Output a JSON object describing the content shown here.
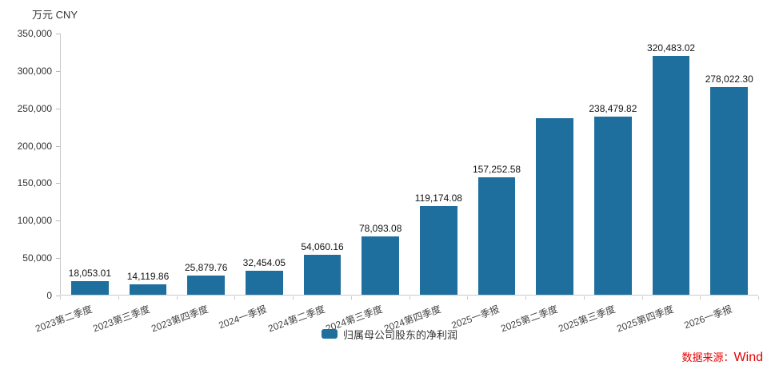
{
  "chart_data": {
    "type": "bar",
    "unit_label": "万元  CNY",
    "categories": [
      "2023第二季度",
      "2023第三季度",
      "2023第四季度",
      "2024一季报",
      "2024第二季度",
      "2024第三季度",
      "2024第四季度",
      "2025一季报",
      "2025第二季度",
      "2025第三季度",
      "2025第四季度",
      "2026一季报"
    ],
    "values": [
      18053.01,
      14119.86,
      25879.76,
      32454.05,
      54060.16,
      78093.08,
      119174.08,
      157252.58,
      237000,
      238479.82,
      320483.02,
      278022.3
    ],
    "data_labels": [
      "18,053.01",
      "14,119.86",
      "25,879.76",
      "32,454.05",
      "54,060.16",
      "78,093.08",
      "119,174.08",
      "157,252.58",
      "",
      "238,479.82",
      "320,483.02",
      "278,022.30"
    ],
    "ylim": [
      0,
      350000
    ],
    "ytick_interval": 50000,
    "ytick_labels": [
      "0",
      "50,000",
      "100,000",
      "150,000",
      "200,000",
      "250,000",
      "300,000",
      "350,000"
    ],
    "grid": "off",
    "legend_position": "bottom",
    "bar_color": "#1f6f9e",
    "legend": [
      {
        "label": "归属母公司股东的净利润",
        "color": "#1f6f9e"
      }
    ],
    "source_prefix": "数据来源：",
    "source_brand": "Wind",
    "source_color": "#e60000"
  }
}
